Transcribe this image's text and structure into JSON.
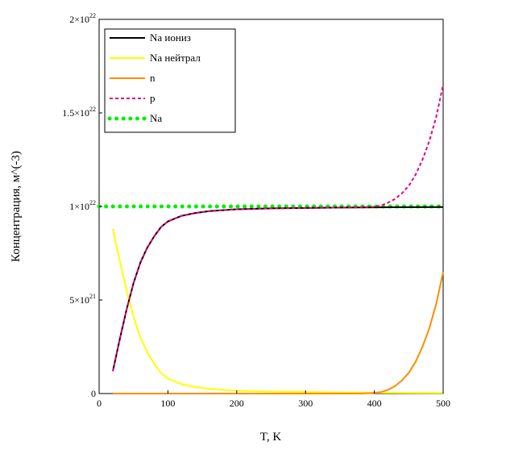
{
  "chart_data": {
    "type": "line",
    "xlabel": "T, K",
    "ylabel": "Концентрация, м^(-3)",
    "xlim": [
      0,
      500
    ],
    "ylim": [
      0,
      2e+22
    ],
    "x_ticks": [
      {
        "value": 0,
        "label": "0"
      },
      {
        "value": 100,
        "label": "100"
      },
      {
        "value": 200,
        "label": "200"
      },
      {
        "value": 300,
        "label": "300"
      },
      {
        "value": 400,
        "label": "400"
      },
      {
        "value": 500,
        "label": "500"
      }
    ],
    "y_ticks": [
      {
        "value": 0,
        "base": "0",
        "exp": ""
      },
      {
        "value": 5e+21,
        "base": "5×10",
        "exp": "21"
      },
      {
        "value": 1e+22,
        "base": "1×10",
        "exp": "22"
      },
      {
        "value": 1.5e+22,
        "base": "1.5×10",
        "exp": "22"
      },
      {
        "value": 2e+22,
        "base": "2×10",
        "exp": "22"
      }
    ],
    "legend_position": "top-left",
    "grid": false,
    "series": [
      {
        "name": "Na иониз",
        "color": "#000000",
        "style": "solid",
        "x": [
          20,
          30,
          40,
          50,
          60,
          70,
          80,
          90,
          100,
          120,
          140,
          160,
          180,
          200,
          250,
          300,
          350,
          400,
          450,
          500
        ],
        "y": [
          1.2e+21,
          2.9e+21,
          4.5e+21,
          5.9e+21,
          7e+21,
          7.8e+21,
          8.4e+21,
          8.9e+21,
          9.2e+21,
          9.5e+21,
          9.65e+21,
          9.75e+21,
          9.8e+21,
          9.85e+21,
          9.9e+21,
          9.92e+21,
          9.94e+21,
          9.95e+21,
          9.96e+21,
          9.97e+21
        ]
      },
      {
        "name": "Na нейтрал",
        "color": "#ffff00",
        "style": "solid",
        "x": [
          20,
          30,
          40,
          50,
          60,
          70,
          80,
          90,
          100,
          120,
          140,
          160,
          180,
          200,
          250,
          300,
          350,
          400,
          450,
          500
        ],
        "y": [
          8.8e+21,
          7.1e+21,
          5.5e+21,
          4.1e+21,
          3e+21,
          2.2e+21,
          1.6e+21,
          1.1e+21,
          8e+20,
          5e+20,
          3.5e+20,
          2.5e+20,
          2e+20,
          1.5e+20,
          1e+20,
          8e+19,
          6e+19,
          5e+19,
          4e+19,
          3e+19
        ]
      },
      {
        "name": "n",
        "color": "#ff8c00",
        "style": "solid",
        "x": [
          20,
          100,
          200,
          300,
          380,
          400,
          410,
          420,
          430,
          440,
          450,
          460,
          470,
          480,
          490,
          500
        ],
        "y": [
          0,
          0,
          0,
          0,
          0,
          3e+19,
          8e+19,
          2e+20,
          4e+20,
          7e+20,
          1.1e+21,
          1.7e+21,
          2.5e+21,
          3.5e+21,
          4.8e+21,
          6.5e+21
        ]
      },
      {
        "name": "p",
        "color": "#e6007e",
        "style": "dashed",
        "x": [
          20,
          30,
          40,
          50,
          60,
          70,
          80,
          90,
          100,
          120,
          140,
          160,
          180,
          200,
          250,
          300,
          350,
          400,
          410,
          420,
          430,
          440,
          450,
          460,
          470,
          480,
          490,
          500
        ],
        "y": [
          1.2e+21,
          2.9e+21,
          4.5e+21,
          5.9e+21,
          7e+21,
          7.8e+21,
          8.4e+21,
          8.9e+21,
          9.2e+21,
          9.5e+21,
          9.65e+21,
          9.75e+21,
          9.8e+21,
          9.85e+21,
          9.9e+21,
          9.92e+21,
          9.94e+21,
          9.98e+21,
          1.005e+22,
          1.02e+22,
          1.04e+22,
          1.07e+22,
          1.11e+22,
          1.17e+22,
          1.25e+22,
          1.35e+22,
          1.48e+22,
          1.65e+22
        ]
      },
      {
        "name": "Na",
        "color": "#00ee00",
        "style": "dotted",
        "x": [
          0,
          500
        ],
        "y": [
          1e+22,
          1e+22
        ]
      }
    ]
  }
}
